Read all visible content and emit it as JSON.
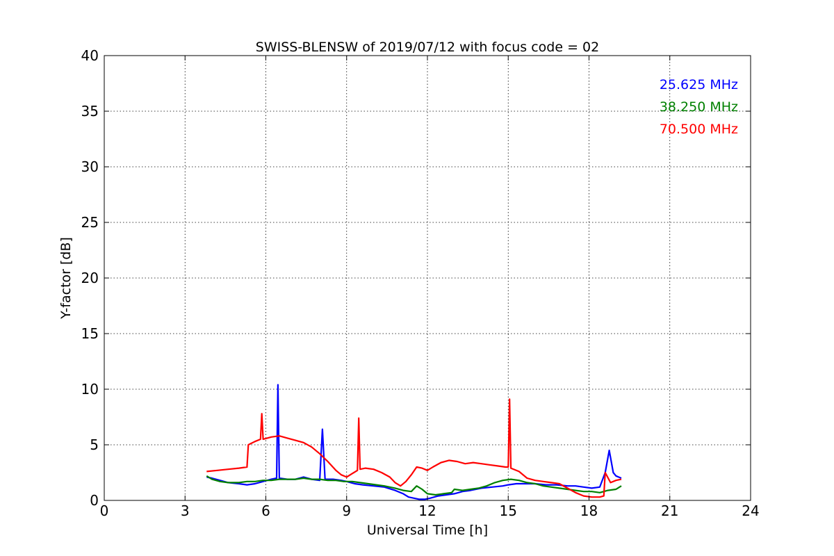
{
  "chart_data": {
    "type": "line",
    "title": "SWISS-BLENSW of 2019/07/12 with focus code = 02",
    "xlabel": "Universal Time [h]",
    "ylabel": "Y-factor [dB]",
    "xlim": [
      0,
      24
    ],
    "ylim": [
      0,
      40
    ],
    "xticks": [
      0,
      3,
      6,
      9,
      12,
      15,
      18,
      21,
      24
    ],
    "yticks": [
      0,
      5,
      10,
      15,
      20,
      25,
      30,
      35,
      40
    ],
    "grid": true,
    "legend_position": "top-right",
    "series": [
      {
        "name": "25.625 MHz",
        "color": "#0000ff",
        "x": [
          3.8,
          4.0,
          4.3,
          4.6,
          5.0,
          5.3,
          5.6,
          5.9,
          6.2,
          6.4,
          6.45,
          6.5,
          6.8,
          7.1,
          7.4,
          7.7,
          8.0,
          8.1,
          8.2,
          8.5,
          8.8,
          9.0,
          9.3,
          9.6,
          10.0,
          10.4,
          10.8,
          11.1,
          11.3,
          11.5,
          11.7,
          11.9,
          12.1,
          12.4,
          12.7,
          13.0,
          13.3,
          13.6,
          14.0,
          14.4,
          14.8,
          15.0,
          15.3,
          15.6,
          16.0,
          16.4,
          16.8,
          17.2,
          17.5,
          17.8,
          18.1,
          18.4,
          18.6,
          18.75,
          18.9,
          19.0,
          19.2
        ],
        "y": [
          2.1,
          2.0,
          1.8,
          1.6,
          1.5,
          1.4,
          1.5,
          1.7,
          1.9,
          2.0,
          10.4,
          2.0,
          1.9,
          1.9,
          2.1,
          1.9,
          1.8,
          6.4,
          1.9,
          1.9,
          1.8,
          1.7,
          1.5,
          1.4,
          1.3,
          1.2,
          0.9,
          0.6,
          0.3,
          0.2,
          0.1,
          0.1,
          0.2,
          0.4,
          0.5,
          0.6,
          0.8,
          0.9,
          1.1,
          1.2,
          1.3,
          1.4,
          1.5,
          1.5,
          1.5,
          1.4,
          1.4,
          1.3,
          1.3,
          1.2,
          1.1,
          1.2,
          2.5,
          4.5,
          2.5,
          2.2,
          2.0
        ]
      },
      {
        "name": "38.250 MHz",
        "color": "#008000",
        "x": [
          3.8,
          4.0,
          4.3,
          4.6,
          5.0,
          5.3,
          5.6,
          5.9,
          6.2,
          6.5,
          6.8,
          7.1,
          7.4,
          7.7,
          8.0,
          8.3,
          8.6,
          8.9,
          9.2,
          9.5,
          9.8,
          10.1,
          10.4,
          10.8,
          11.1,
          11.4,
          11.6,
          11.8,
          12.0,
          12.3,
          12.6,
          12.9,
          13.0,
          13.3,
          13.6,
          13.9,
          14.2,
          14.5,
          14.8,
          15.1,
          15.4,
          15.7,
          16.0,
          16.3,
          16.6,
          16.9,
          17.2,
          17.5,
          17.8,
          18.1,
          18.4,
          18.7,
          19.0,
          19.2
        ],
        "y": [
          2.2,
          1.9,
          1.7,
          1.6,
          1.6,
          1.7,
          1.7,
          1.8,
          1.8,
          1.9,
          1.9,
          1.9,
          2.0,
          1.9,
          1.9,
          1.8,
          1.8,
          1.7,
          1.7,
          1.6,
          1.5,
          1.4,
          1.3,
          1.1,
          0.9,
          0.8,
          1.3,
          1.0,
          0.6,
          0.5,
          0.6,
          0.7,
          1.0,
          0.9,
          1.0,
          1.1,
          1.3,
          1.6,
          1.8,
          1.9,
          1.8,
          1.6,
          1.5,
          1.3,
          1.2,
          1.1,
          1.0,
          0.9,
          0.8,
          0.8,
          0.7,
          0.9,
          1.0,
          1.3
        ]
      },
      {
        "name": "70.500 MHz",
        "color": "#ff0000",
        "x": [
          3.8,
          4.2,
          4.6,
          5.0,
          5.3,
          5.35,
          5.6,
          5.8,
          5.85,
          5.9,
          6.2,
          6.5,
          6.8,
          7.1,
          7.4,
          7.7,
          8.0,
          8.3,
          8.6,
          8.8,
          9.0,
          9.2,
          9.4,
          9.45,
          9.5,
          9.7,
          10.0,
          10.3,
          10.6,
          10.8,
          11.0,
          11.2,
          11.4,
          11.6,
          11.8,
          12.0,
          12.2,
          12.5,
          12.8,
          13.1,
          13.4,
          13.7,
          14.0,
          14.3,
          14.6,
          14.9,
          15.0,
          15.05,
          15.1,
          15.4,
          15.7,
          16.0,
          16.3,
          16.6,
          16.9,
          17.2,
          17.5,
          17.8,
          18.1,
          18.4,
          18.55,
          18.6,
          18.8,
          19.0,
          19.2
        ],
        "y": [
          2.6,
          2.7,
          2.8,
          2.9,
          3.0,
          5.0,
          5.3,
          5.5,
          7.8,
          5.5,
          5.7,
          5.8,
          5.6,
          5.4,
          5.2,
          4.8,
          4.2,
          3.5,
          2.7,
          2.3,
          2.1,
          2.4,
          2.7,
          7.4,
          2.8,
          2.9,
          2.8,
          2.5,
          2.1,
          1.6,
          1.3,
          1.7,
          2.3,
          3.0,
          2.9,
          2.7,
          3.0,
          3.4,
          3.6,
          3.5,
          3.3,
          3.4,
          3.3,
          3.2,
          3.1,
          3.0,
          3.0,
          9.1,
          2.9,
          2.6,
          2.0,
          1.8,
          1.7,
          1.6,
          1.5,
          1.1,
          0.7,
          0.4,
          0.3,
          0.3,
          0.4,
          2.5,
          1.6,
          1.8,
          1.9
        ]
      }
    ]
  }
}
